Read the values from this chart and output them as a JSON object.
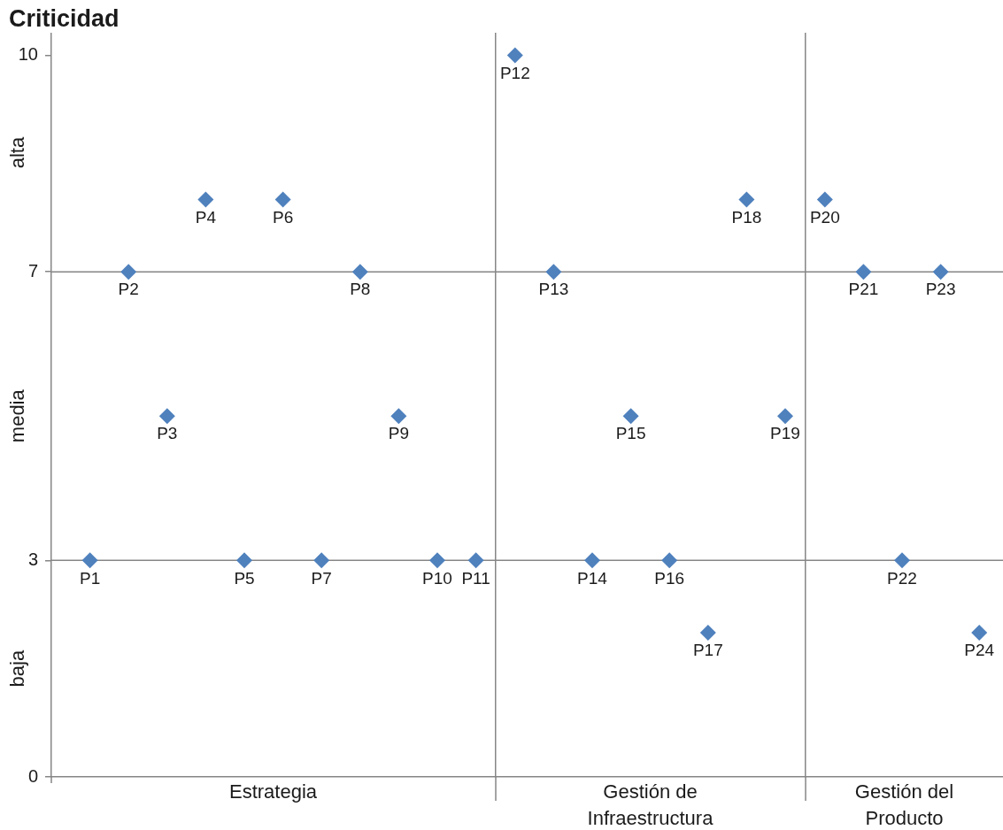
{
  "chart_data": [
    {
      "type": "scatter",
      "ylabel": "Criticidad",
      "xlabel": "Estrategia",
      "categories": [
        "P1",
        "P2",
        "P3",
        "P4",
        "P5",
        "P6",
        "P7",
        "P8",
        "P9",
        "P10",
        "P11"
      ],
      "values": [
        3,
        7,
        5,
        8,
        3,
        8,
        3,
        7,
        5,
        3,
        3
      ],
      "color": "#4f81bd",
      "ylim": [
        0,
        10.3
      ],
      "yticks": [
        0,
        3,
        7,
        10
      ],
      "ref_lines": [
        {
          "axis": "y",
          "value": 3
        },
        {
          "axis": "y",
          "value": 7
        }
      ],
      "annotations": [
        "alta",
        "media",
        "baja"
      ],
      "tick_labels": "y",
      "marker": "diamond"
    },
    {
      "type": "scatter",
      "xlabel": "Gestión de Infraestructura",
      "categories": [
        "P12",
        "P13",
        "P14",
        "P15",
        "P16",
        "P17",
        "P18",
        "P19"
      ],
      "values": [
        10,
        7,
        3,
        5,
        3,
        2,
        8,
        5
      ],
      "color": "#4f81bd",
      "ylim": [
        0,
        10.3
      ],
      "ref_lines": [
        {
          "axis": "y",
          "value": 3
        },
        {
          "axis": "y",
          "value": 7
        }
      ],
      "tick_labels": false,
      "marker": "diamond"
    },
    {
      "type": "scatter",
      "xlabel": "Gestión del Producto",
      "categories": [
        "P20",
        "P21",
        "P22",
        "P23",
        "P24"
      ],
      "values": [
        8,
        7,
        3,
        7,
        2
      ],
      "color": "#4f81bd",
      "ylim": [
        0,
        10.3
      ],
      "ref_lines": [
        {
          "axis": "y",
          "value": 3
        },
        {
          "axis": "y",
          "value": 7
        }
      ],
      "tick_labels": false,
      "marker": "diamond"
    }
  ]
}
